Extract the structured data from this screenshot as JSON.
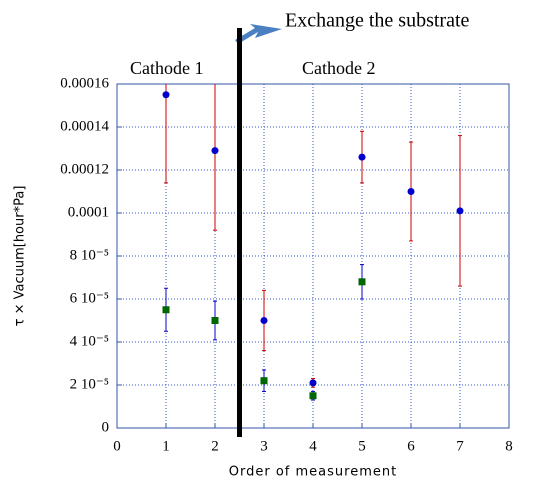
{
  "chart_data": {
    "type": "scatter",
    "annotations": [
      "Exchange the substrate",
      "Cathode 1",
      "Cathode 2"
    ],
    "xlabel": "Order of measurement",
    "ylabel": "τ × Vacuum[hour*Pa]",
    "divider_x": 2.5,
    "xlim": [
      0,
      8
    ],
    "xticks": [
      0,
      1,
      2,
      3,
      4,
      5,
      6,
      7,
      8
    ],
    "ylim": [
      0,
      0.00016
    ],
    "yticks": [
      0,
      {
        "value": 2e-05,
        "label": "2 10⁻⁵"
      },
      {
        "value": 4e-05,
        "label": "4 10⁻⁵"
      },
      {
        "value": 6e-05,
        "label": "6 10⁻⁵"
      },
      {
        "value": 8e-05,
        "label": "8 10⁻⁵"
      },
      0.0001,
      0.00012,
      0.00014,
      0.00016
    ],
    "grid": true,
    "series": [
      {
        "color": "#0000cc",
        "marker": "circle",
        "error_color": "#cc0000",
        "x": [
          1,
          2,
          3,
          4,
          5,
          6,
          7
        ],
        "values": [
          0.000155,
          0.000129,
          5e-05,
          2.1e-05,
          0.000126,
          0.00011,
          0.000101
        ],
        "errors": [
          4.1e-05,
          3.7e-05,
          1.4e-05,
          2e-06,
          1.2e-05,
          2.3e-05,
          3.5e-05
        ]
      },
      {
        "color": "#006600",
        "marker": "square",
        "error_color": "#0000cc",
        "x": [
          1,
          2,
          3,
          4,
          5
        ],
        "values": [
          5.5e-05,
          5e-05,
          2.2e-05,
          1.5e-05,
          6.8e-05
        ],
        "errors": [
          1e-05,
          9e-06,
          5e-06,
          2e-06,
          8e-06
        ]
      }
    ]
  }
}
